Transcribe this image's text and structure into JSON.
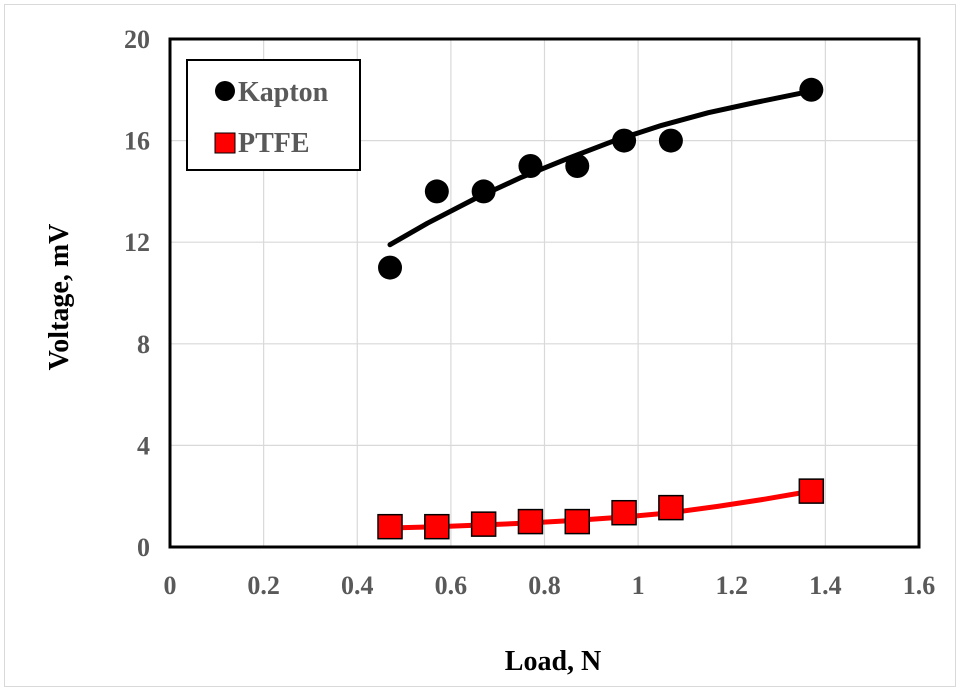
{
  "chart_data": {
    "type": "scatter",
    "xlabel": "Load, N",
    "ylabel": "Voltage, mV",
    "xlim": [
      0,
      1.6
    ],
    "ylim": [
      0,
      20
    ],
    "x_ticks": [
      "0",
      "0.2",
      "0.4",
      "0.6",
      "0.8",
      "1",
      "1.2",
      "1.4",
      "1.6"
    ],
    "y_ticks": [
      "0",
      "4",
      "8",
      "12",
      "16",
      "20"
    ],
    "grid": true,
    "legend_position": "top-left",
    "series": [
      {
        "name": "Kapton",
        "marker": "circle",
        "color": "#000000",
        "x": [
          0.47,
          0.57,
          0.67,
          0.77,
          0.87,
          0.97,
          1.07,
          1.37
        ],
        "y": [
          11,
          14,
          14,
          15,
          15,
          16,
          16,
          18
        ],
        "trendline": {
          "x": [
            0.47,
            0.55,
            0.65,
            0.75,
            0.85,
            0.95,
            1.05,
            1.15,
            1.25,
            1.37
          ],
          "y": [
            11.9,
            12.75,
            13.7,
            14.55,
            15.3,
            16.0,
            16.6,
            17.1,
            17.5,
            17.95
          ]
        }
      },
      {
        "name": "PTFE",
        "marker": "square",
        "color": "#ff0000",
        "x": [
          0.47,
          0.57,
          0.67,
          0.77,
          0.87,
          0.97,
          1.07,
          1.37
        ],
        "y": [
          0.8,
          0.8,
          0.9,
          1.0,
          1.0,
          1.35,
          1.55,
          2.2
        ],
        "trendline": {
          "x": [
            0.47,
            0.57,
            0.67,
            0.77,
            0.87,
            0.97,
            1.07,
            1.17,
            1.27,
            1.37
          ],
          "y": [
            0.75,
            0.8,
            0.87,
            0.95,
            1.05,
            1.18,
            1.35,
            1.6,
            1.88,
            2.2
          ]
        }
      }
    ]
  }
}
